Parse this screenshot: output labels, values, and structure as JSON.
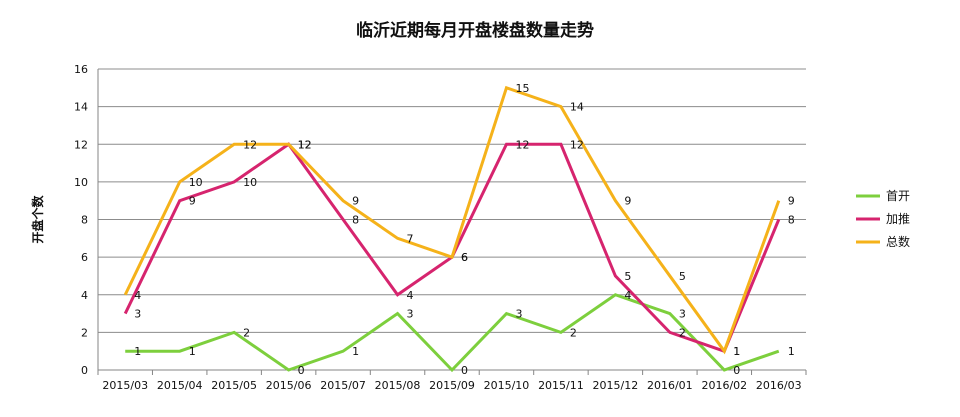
{
  "chart_data": {
    "type": "line",
    "title": "临沂近期每月开盘楼盘数量走势",
    "xlabel": "",
    "ylabel": "开盘个数",
    "ylim": [
      0,
      16
    ],
    "yticks": [
      0,
      2,
      4,
      6,
      8,
      10,
      12,
      14,
      16
    ],
    "grid": true,
    "legend_position": "right",
    "categories": [
      "2015/03",
      "2015/04",
      "2015/05",
      "2015/06",
      "2015/07",
      "2015/08",
      "2015/09",
      "2015/10",
      "2015/11",
      "2015/12",
      "2016/01",
      "2016/02",
      "2016/03"
    ],
    "series": [
      {
        "name": "首开",
        "color": "#7dcf3d",
        "values": [
          1,
          1,
          2,
          0,
          1,
          3,
          0,
          3,
          2,
          4,
          3,
          0,
          1
        ]
      },
      {
        "name": "加推",
        "color": "#d6246e",
        "values": [
          3,
          9,
          10,
          12,
          8,
          4,
          6,
          12,
          12,
          5,
          2,
          1,
          8
        ]
      },
      {
        "name": "总数",
        "color": "#f5b21a",
        "values": [
          4,
          10,
          12,
          12,
          9,
          7,
          6,
          15,
          14,
          9,
          5,
          1,
          9
        ]
      }
    ]
  }
}
